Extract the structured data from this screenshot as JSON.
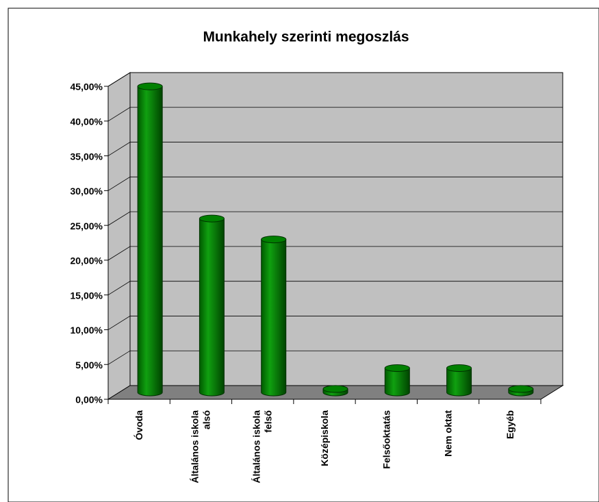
{
  "chart_data": {
    "type": "bar3d",
    "title": "Munkahely szerinti megoszlás",
    "categories": [
      "Óvoda",
      "Általános iskola alsó",
      "Általános iskola felső",
      "Középiskola",
      "Felsőoktatás",
      "Nem oktat",
      "Egyéb"
    ],
    "values": [
      44,
      25,
      22,
      0.5,
      3.5,
      3.5,
      0.5
    ],
    "color": "#008000",
    "ylim": [
      0,
      45
    ],
    "yticks": [
      {
        "value": 0,
        "label": "0,00%"
      },
      {
        "value": 5,
        "label": "5,00%"
      },
      {
        "value": 10,
        "label": "10,00%"
      },
      {
        "value": 15,
        "label": "15,00%"
      },
      {
        "value": 20,
        "label": "20,00%"
      },
      {
        "value": 25,
        "label": "25,00%"
      },
      {
        "value": 30,
        "label": "30,00%"
      },
      {
        "value": 35,
        "label": "35,00%"
      },
      {
        "value": 40,
        "label": "40,00%"
      },
      {
        "value": 45,
        "label": "45,00%"
      }
    ],
    "grid": true
  }
}
